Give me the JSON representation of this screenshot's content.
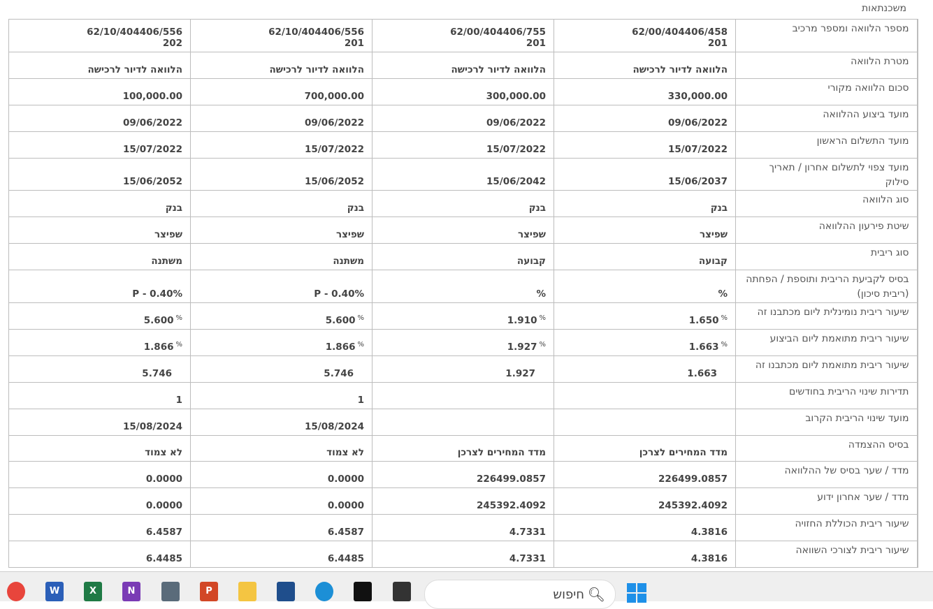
{
  "page_title": "משכנתאות",
  "rows": [
    {
      "label": "מספר הלוואה ומספר מרכיב",
      "cells": [
        {
          "v": "62/00/404406/458\n201"
        },
        {
          "v": "62/00/404406/755\n201"
        },
        {
          "v": "62/10/404406/556\n201"
        },
        {
          "v": "62/10/404406/556\n202"
        }
      ]
    },
    {
      "label": "מטרת הלוואה",
      "cells": [
        {
          "v": "הלוואה לדיור לרכישה"
        },
        {
          "v": "הלוואה לדיור לרכישה"
        },
        {
          "v": "הלוואה לדיור לרכישה"
        },
        {
          "v": "הלוואה לדיור לרכישה"
        }
      ]
    },
    {
      "label": "סכום הלוואה מקורי",
      "cells": [
        {
          "v": "330,000.00"
        },
        {
          "v": "300,000.00"
        },
        {
          "v": "700,000.00"
        },
        {
          "v": "100,000.00"
        }
      ]
    },
    {
      "label": "מועד ביצוע ההלוואה",
      "cells": [
        {
          "v": "09/06/2022"
        },
        {
          "v": "09/06/2022"
        },
        {
          "v": "09/06/2022"
        },
        {
          "v": "09/06/2022"
        }
      ]
    },
    {
      "label": "מועד התשלום הראשון",
      "cells": [
        {
          "v": "15/07/2022"
        },
        {
          "v": "15/07/2022"
        },
        {
          "v": "15/07/2022"
        },
        {
          "v": "15/07/2022"
        }
      ]
    },
    {
      "label": "מועד צפוי לתשלום אחרון / תאריך סילוק",
      "cells": [
        {
          "v": "15/06/2037"
        },
        {
          "v": "15/06/2042"
        },
        {
          "v": "15/06/2052"
        },
        {
          "v": "15/06/2052"
        }
      ]
    },
    {
      "label": "סוג הלוואה",
      "cells": [
        {
          "v": "בנק"
        },
        {
          "v": "בנק"
        },
        {
          "v": "בנק"
        },
        {
          "v": "בנק"
        }
      ]
    },
    {
      "label": "שיטת פירעון ההלוואה",
      "cells": [
        {
          "v": "שפיצר"
        },
        {
          "v": "שפיצר"
        },
        {
          "v": "שפיצר"
        },
        {
          "v": "שפיצר"
        }
      ]
    },
    {
      "label": "סוג ריבית",
      "cells": [
        {
          "v": "קבועה"
        },
        {
          "v": "קבועה"
        },
        {
          "v": "משתנה"
        },
        {
          "v": "משתנה"
        }
      ]
    },
    {
      "label": "בסיס לקביעת הריבית ותוספת / הפחתה (ריבית סיכון)",
      "cells": [
        {
          "v": "%"
        },
        {
          "v": "%"
        },
        {
          "v": "P - 0.40%"
        },
        {
          "v": "P - 0.40%"
        }
      ]
    },
    {
      "label": "שיעור ריבית נומינלית ליום מכתבנו זה",
      "cells": [
        {
          "v": "1.650",
          "pct": "%"
        },
        {
          "v": "1.910",
          "pct": "%"
        },
        {
          "v": "5.600",
          "pct": "%"
        },
        {
          "v": "5.600",
          "pct": "%"
        }
      ]
    },
    {
      "label": "שיעור ריבית מתואמת ליום הביצוע",
      "cells": [
        {
          "v": "1.663",
          "pct": "%"
        },
        {
          "v": "1.927",
          "pct": "%"
        },
        {
          "v": "1.866",
          "pct": "%"
        },
        {
          "v": "1.866",
          "pct": "%"
        }
      ]
    },
    {
      "label": "שיעור ריבית מתואמת ליום מכתבנו זה",
      "cells": [
        {
          "v": "1.663",
          "pad": true
        },
        {
          "v": "1.927",
          "pad": true
        },
        {
          "v": "5.746",
          "pad": true
        },
        {
          "v": "5.746",
          "pad": true
        }
      ]
    },
    {
      "label": "תדירות שינוי הריבית בחודשים",
      "cells": [
        {
          "v": ""
        },
        {
          "v": ""
        },
        {
          "v": "1"
        },
        {
          "v": "1"
        }
      ]
    },
    {
      "label": "מועד שינוי הריבית הקרוב",
      "cells": [
        {
          "v": ""
        },
        {
          "v": ""
        },
        {
          "v": "15/08/2024"
        },
        {
          "v": "15/08/2024"
        }
      ]
    },
    {
      "label": "בסיס ההצמדה",
      "cells": [
        {
          "v": "מדד המחירים לצרכן"
        },
        {
          "v": "מדד המחירים לצרכן"
        },
        {
          "v": "לא צמוד"
        },
        {
          "v": "לא צמוד"
        }
      ]
    },
    {
      "label": "מדד / שער בסיס של ההלוואה",
      "cells": [
        {
          "v": "226499.0857"
        },
        {
          "v": "226499.0857"
        },
        {
          "v": "0.0000"
        },
        {
          "v": "0.0000"
        }
      ]
    },
    {
      "label": "מדד / שער אחרון ידוע",
      "cells": [
        {
          "v": "245392.4092"
        },
        {
          "v": "245392.4092"
        },
        {
          "v": "0.0000"
        },
        {
          "v": "0.0000"
        }
      ]
    },
    {
      "label": "שיעור ריבית הכוללת החזויה",
      "cells": [
        {
          "v": "4.3816"
        },
        {
          "v": "4.7331"
        },
        {
          "v": "6.4587"
        },
        {
          "v": "6.4587"
        }
      ]
    },
    {
      "label": "שיעור ריבית לצורכי השוואה",
      "cells": [
        {
          "v": "4.3816"
        },
        {
          "v": "4.7331"
        },
        {
          "v": "6.4485"
        },
        {
          "v": "6.4485"
        }
      ]
    }
  ],
  "taskbar": {
    "search_placeholder": "חיפוש",
    "apps": [
      {
        "name": "chrome",
        "letter": "",
        "color": "#e8453c"
      },
      {
        "name": "word",
        "letter": "W",
        "color": "#2b5fb8"
      },
      {
        "name": "excel",
        "letter": "X",
        "color": "#1f7a45"
      },
      {
        "name": "onenote",
        "letter": "N",
        "color": "#7a3bb5"
      },
      {
        "name": "calculator",
        "letter": "",
        "color": "#5a6b7a"
      },
      {
        "name": "powerpoint",
        "letter": "P",
        "color": "#d24726"
      },
      {
        "name": "file-explorer",
        "letter": "",
        "color": "#f4c542"
      },
      {
        "name": "store",
        "letter": "",
        "color": "#1f4e8c"
      },
      {
        "name": "edge",
        "letter": "",
        "color": "#1c8fd6"
      },
      {
        "name": "dropbox",
        "letter": "",
        "color": "#111111"
      },
      {
        "name": "app",
        "letter": "",
        "color": "#333333"
      }
    ],
    "windows_color": "#1e90e8"
  }
}
